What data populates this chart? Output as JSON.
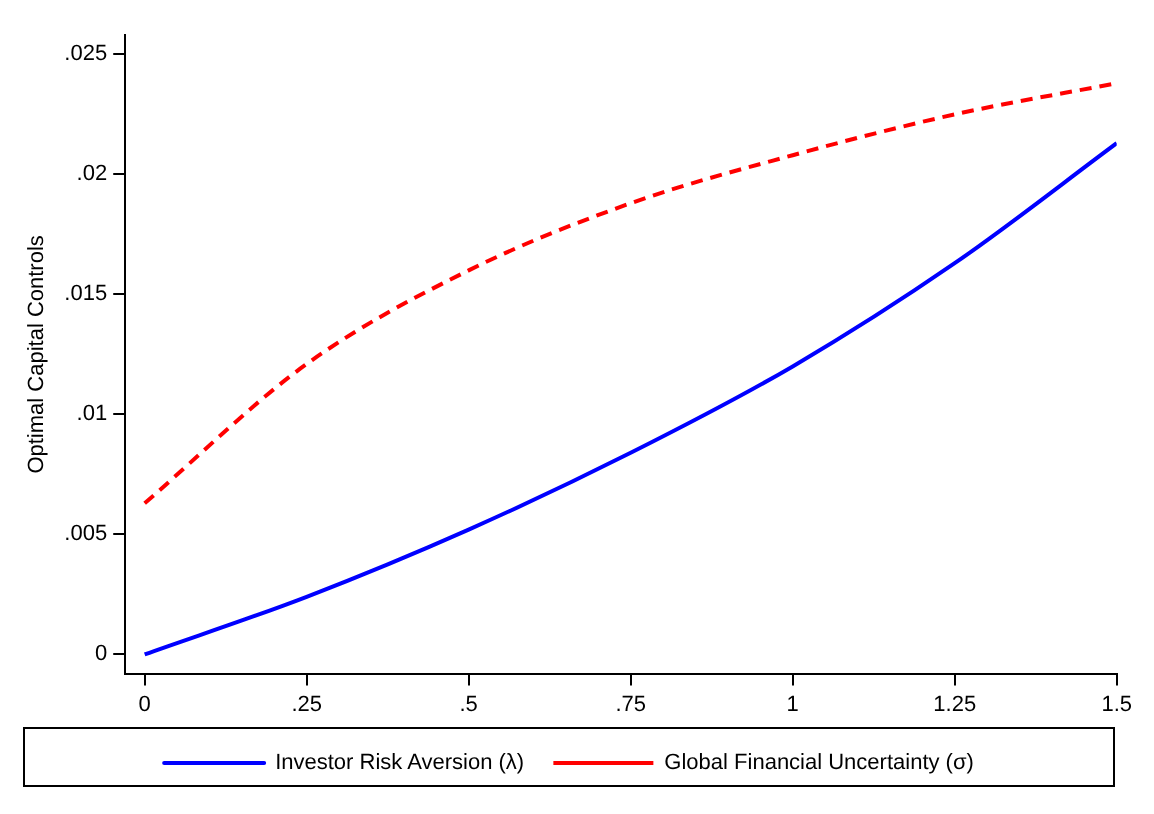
{
  "chart_data": {
    "type": "line",
    "ylabel": "Optimal Capital Controls",
    "x": [
      0,
      0.25,
      0.5,
      0.75,
      1,
      1.25,
      1.5
    ],
    "series": [
      {
        "name": "Investor Risk Aversion (λ)",
        "color": "#0000ff",
        "line_style": "solid",
        "values": [
          0,
          0.0024,
          0.0052,
          0.0084,
          0.012,
          0.0163,
          0.0213
        ]
      },
      {
        "name": "Global Financial Uncertainty (σ)",
        "color": "#ff0000",
        "line_style": "dashed",
        "values": [
          0.0063,
          0.0121,
          0.016,
          0.0188,
          0.0208,
          0.0225,
          0.0238
        ]
      }
    ],
    "xlim": [
      -0.03,
      1.5
    ],
    "ylim": [
      -0.0008,
      0.0258
    ],
    "xticks": [
      0,
      {
        "value": 0.25,
        "label": ".25"
      },
      {
        "value": 0.5,
        "label": ".5"
      },
      {
        "value": 0.75,
        "label": ".75"
      },
      1,
      1.25,
      1.5
    ],
    "yticks": [
      0,
      {
        "value": 0.005,
        "label": ".005"
      },
      {
        "value": 0.01,
        "label": ".01"
      },
      {
        "value": 0.015,
        "label": ".015"
      },
      {
        "value": 0.02,
        "label": ".02"
      },
      {
        "value": 0.025,
        "label": ".025"
      }
    ],
    "grid": false,
    "legend": "bottom",
    "marker": "none"
  }
}
